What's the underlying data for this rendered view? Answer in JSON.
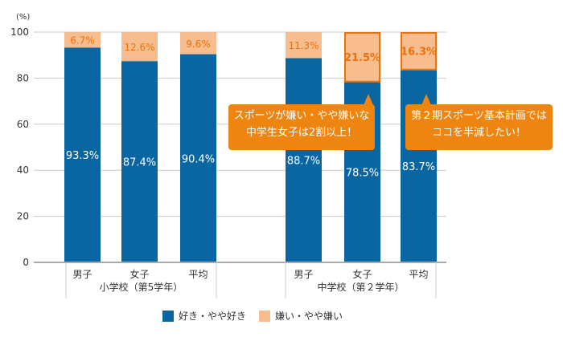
{
  "chart_data": {
    "type": "bar",
    "stacked": true,
    "unit_label": "(%)",
    "ylim": [
      0,
      100
    ],
    "yticks": [
      0,
      20,
      40,
      60,
      80,
      100
    ],
    "grid": true,
    "groups": [
      {
        "label": "小学校（第5学年）",
        "categories": [
          "男子",
          "女子",
          "平均"
        ]
      },
      {
        "label": "中学校（第２学年）",
        "categories": [
          "男子",
          "女子",
          "平均"
        ]
      }
    ],
    "series": [
      {
        "name": "好き・やや好き",
        "color": "#0966a0",
        "values": [
          93.3,
          87.4,
          90.4,
          88.7,
          78.5,
          83.7
        ]
      },
      {
        "name": "嫌い・やや嫌い",
        "color": "#f8bd8f",
        "values": [
          6.7,
          12.6,
          9.6,
          11.3,
          21.5,
          16.3
        ]
      }
    ],
    "highlighted": [
      4,
      5
    ],
    "highlight_color": "#e8720c",
    "legend_position": "bottom"
  },
  "callouts": [
    {
      "line1": "スポーツが嫌い・やや嫌いな",
      "line2": "中学生女子は2割以上！"
    },
    {
      "line1": "第２期スポーツ基本計画では",
      "line2": "ココを半減したい！"
    }
  ]
}
